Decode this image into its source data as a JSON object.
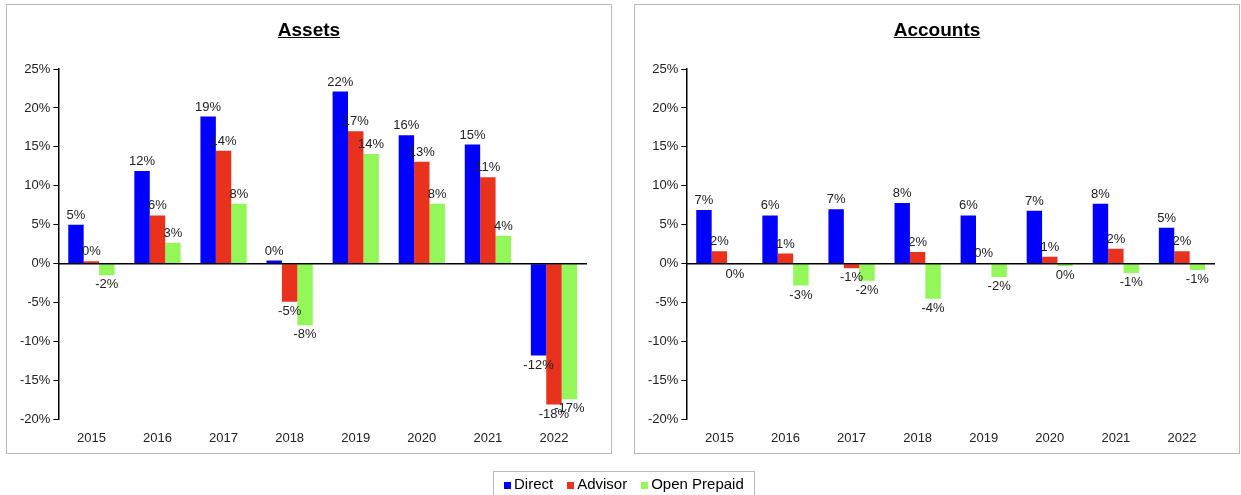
{
  "chart_data": [
    {
      "type": "bar",
      "title": "Assets",
      "categories": [
        "2015",
        "2016",
        "2017",
        "2018",
        "2019",
        "2020",
        "2021",
        "2022"
      ],
      "series": [
        {
          "name": "Direct",
          "color": "#0000ff",
          "values": [
            5,
            11.9,
            18.9,
            0.4,
            22.1,
            16.5,
            15.3,
            -11.8
          ],
          "value_labels": [
            "5%",
            "12%",
            "19%",
            "0%",
            "22%",
            "16%",
            "15%",
            "-12%"
          ]
        },
        {
          "name": "Advisor",
          "color": "#e8321e",
          "values": [
            0.3,
            6.2,
            14.5,
            -4.9,
            17,
            13.1,
            11.1,
            -18.1
          ],
          "value_labels": [
            "0%",
            "6%",
            "14%",
            "-5%",
            "17%",
            "13%",
            "11%",
            "-18%"
          ]
        },
        {
          "name": "Open Prepaid",
          "color": "#93f75a",
          "values": [
            -1.5,
            2.7,
            7.7,
            -7.9,
            14.1,
            7.7,
            3.6,
            -17.4
          ],
          "value_labels": [
            "-2%",
            "3%",
            "8%",
            "-8%",
            "14%",
            "8%",
            "4%",
            "-17%"
          ]
        }
      ],
      "ylim": [
        -20,
        25
      ],
      "yticks": [
        {
          "value": -20,
          "label": "-20%"
        },
        {
          "value": -15,
          "label": "-15%"
        },
        {
          "value": -10,
          "label": "-10%"
        },
        {
          "value": -5,
          "label": "-5%"
        },
        {
          "value": 0,
          "label": "0%"
        },
        {
          "value": 5,
          "label": "5%"
        },
        {
          "value": 10,
          "label": "10%"
        },
        {
          "value": 15,
          "label": "15%"
        },
        {
          "value": 20,
          "label": "20%"
        },
        {
          "value": 25,
          "label": "25%"
        }
      ],
      "legend": "bottom"
    },
    {
      "type": "bar",
      "title": "Accounts",
      "categories": [
        "2015",
        "2016",
        "2017",
        "2018",
        "2019",
        "2020",
        "2021",
        "2022"
      ],
      "series": [
        {
          "color": "#0000ff",
          "values": [
            6.9,
            6.2,
            7,
            7.8,
            6.2,
            6.8,
            7.7,
            4.6
          ],
          "value_labels": [
            "7%",
            "6%",
            "7%",
            "8%",
            "6%",
            "7%",
            "8%",
            "5%"
          ]
        },
        {
          "color": "#e8321e",
          "values": [
            1.6,
            1.3,
            -0.6,
            1.5,
            0.1,
            0.9,
            1.9,
            1.6
          ],
          "value_labels": [
            "2%",
            "1%",
            "-1%",
            "2%",
            "0%",
            "1%",
            "2%",
            "2%"
          ]
        },
        {
          "color": "#93f75a",
          "values": [
            -0.1,
            -2.8,
            -2.2,
            -4.5,
            -1.7,
            -0.3,
            -1.2,
            -0.8
          ],
          "value_labels": [
            "0%",
            "-3%",
            "-2%",
            "-4%",
            "-2%",
            "0%",
            "-1%",
            "-1%"
          ]
        }
      ],
      "ylim": [
        -20,
        25
      ],
      "yticks": [
        {
          "value": -20,
          "label": "-20%"
        },
        {
          "value": -15,
          "label": "-15%"
        },
        {
          "value": -10,
          "label": "-10%"
        },
        {
          "value": -5,
          "label": "-5%"
        },
        {
          "value": 0,
          "label": "0%"
        },
        {
          "value": 5,
          "label": "5%"
        },
        {
          "value": 10,
          "label": "10%"
        },
        {
          "value": 15,
          "label": "15%"
        },
        {
          "value": 20,
          "label": "20%"
        },
        {
          "value": 25,
          "label": "25%"
        }
      ],
      "legend": false
    }
  ]
}
